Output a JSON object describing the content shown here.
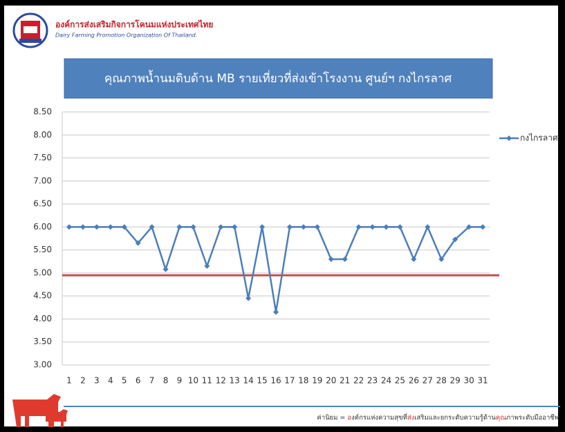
{
  "header": {
    "org_th": "องค์การส่งเสริมกิจการโคนมแห่งประเทศไทย",
    "org_en": "Dairy Farming Promotion Organization Of Thailand."
  },
  "chart_data": {
    "type": "line",
    "title": "คุณภาพน้ำนมดิบด้าน MB รายเที่ยวที่ส่งเข้าโรงงาน ศูนย์ฯ กงไกรลาศ",
    "categories": [
      "1",
      "2",
      "3",
      "4",
      "5",
      "6",
      "7",
      "8",
      "9",
      "10",
      "11",
      "12",
      "13",
      "14",
      "15",
      "16",
      "17",
      "18",
      "19",
      "20",
      "21",
      "22",
      "23",
      "24",
      "25",
      "26",
      "27",
      "28",
      "29",
      "30",
      "31"
    ],
    "series": [
      {
        "name": "กงไกรลาศ",
        "color": "#4a7ebb",
        "values": [
          6.0,
          6.0,
          6.0,
          6.0,
          6.0,
          5.65,
          6.0,
          5.08,
          6.0,
          6.0,
          5.15,
          6.0,
          6.0,
          4.45,
          6.0,
          4.15,
          6.0,
          6.0,
          6.0,
          5.3,
          5.3,
          6.0,
          6.0,
          6.0,
          6.0,
          5.3,
          6.0,
          5.3,
          5.73,
          6.0,
          6.0
        ]
      }
    ],
    "reference_line": {
      "value": 4.95,
      "color": "#c0504d"
    },
    "ylim": [
      3.0,
      8.5
    ],
    "yticks": [
      {
        "value": 3.0,
        "label": "3.00"
      },
      {
        "value": 3.5,
        "label": "3.50"
      },
      {
        "value": 4.0,
        "label": "4.00"
      },
      {
        "value": 4.5,
        "label": "4.50"
      },
      {
        "value": 5.0,
        "label": "5.00"
      },
      {
        "value": 5.5,
        "label": "5.50"
      },
      {
        "value": 6.0,
        "label": "6.00"
      },
      {
        "value": 6.5,
        "label": "6.50"
      },
      {
        "value": 7.0,
        "label": "7.00"
      },
      {
        "value": 7.5,
        "label": "7.50"
      },
      {
        "value": 8.0,
        "label": "8.00"
      },
      {
        "value": 8.5,
        "label": "8.50"
      }
    ],
    "grid": true,
    "legend": "right"
  },
  "footer": {
    "segments": [
      {
        "text": "ค่านิยม = ",
        "color": "#333333"
      },
      {
        "text": "อ",
        "color": "#d9262b"
      },
      {
        "text": "งค์กรแห่งความสุขที่",
        "color": "#333333"
      },
      {
        "text": "ส่ง",
        "color": "#d9262b"
      },
      {
        "text": "เสริมและยกระดับความรู้ด้าน",
        "color": "#333333"
      },
      {
        "text": "คุณ",
        "color": "#d9262b"
      },
      {
        "text": "ภาพระดับมืออาชีพ",
        "color": "#333333"
      }
    ]
  }
}
